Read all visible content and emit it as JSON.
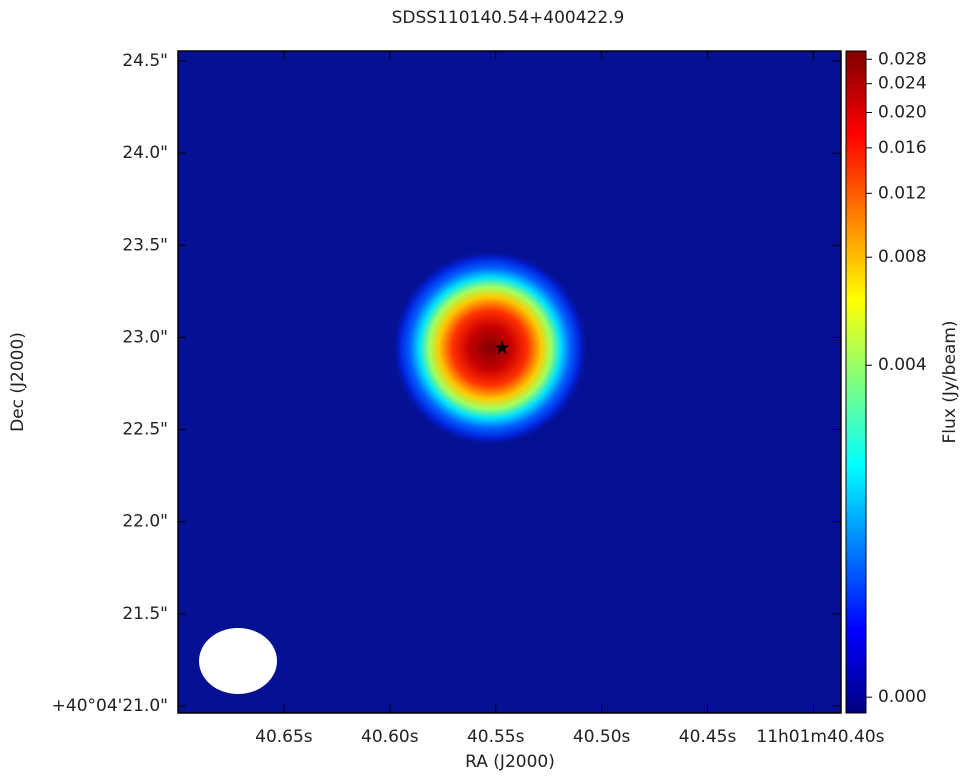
{
  "chart_data": {
    "type": "image",
    "title": "SDSS110140.54+400422.9",
    "x_label": "RA (J2000)",
    "y_label": "Dec (J2000)",
    "colorbar_label": "Flux (Jy/beam)",
    "colormap": "jet",
    "color_stretch": "asinh",
    "xlim": [
      40.7,
      40.387
    ],
    "ylim": [
      20.962,
      24.554
    ],
    "xticks": [
      {
        "value": 40.65,
        "label": "40.65s"
      },
      {
        "value": 40.6,
        "label": "40.60s"
      },
      {
        "value": 40.55,
        "label": "40.55s"
      },
      {
        "value": 40.5,
        "label": "40.50s"
      },
      {
        "value": 40.45,
        "label": "40.45s"
      },
      {
        "value": 40.4,
        "label": "11h01m40.40s"
      }
    ],
    "yticks": [
      {
        "value": 21.0,
        "label": "+40°04'21.0\""
      },
      {
        "value": 21.5,
        "label": "21.5\""
      },
      {
        "value": 22.0,
        "label": "22.0\""
      },
      {
        "value": 22.5,
        "label": "22.5\""
      },
      {
        "value": 23.0,
        "label": "23.0\""
      },
      {
        "value": 23.5,
        "label": "23.5\""
      },
      {
        "value": 24.0,
        "label": "24.0\""
      },
      {
        "value": 24.5,
        "label": "24.5\""
      }
    ],
    "clim": [
      -0.0001,
      0.0295
    ],
    "cticks": [
      {
        "value": 0,
        "label": "0.000"
      },
      {
        "value": 0.004,
        "label": "0.004"
      },
      {
        "value": 0.008,
        "label": "0.008"
      },
      {
        "value": 0.012,
        "label": "0.012"
      },
      {
        "value": 0.016,
        "label": "0.016"
      },
      {
        "value": 0.02,
        "label": "0.020"
      },
      {
        "value": 0.024,
        "label": "0.024"
      },
      {
        "value": 0.028,
        "label": "0.028"
      }
    ],
    "marker": {
      "x": 40.547,
      "y": 22.943
    }
  }
}
